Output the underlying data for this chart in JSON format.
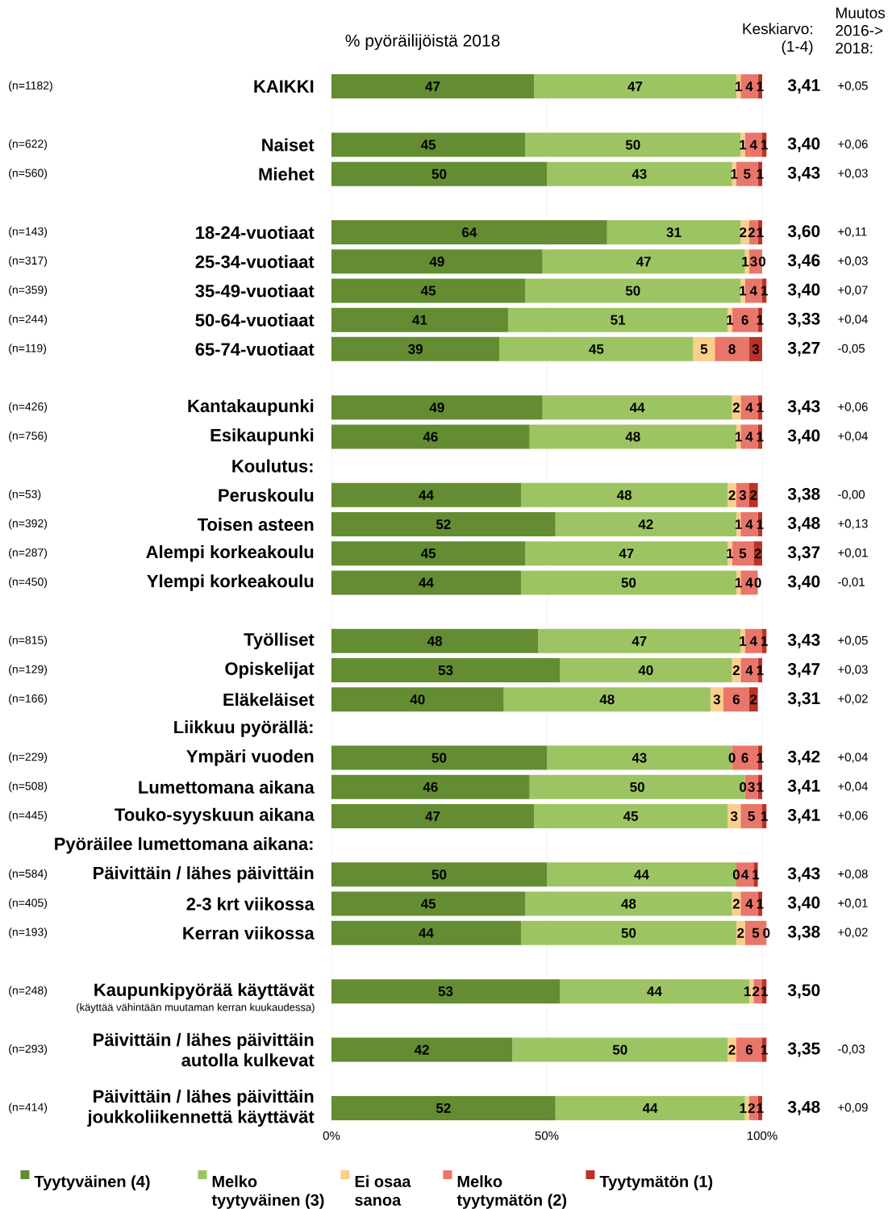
{
  "chart_data": {
    "type": "bar",
    "orientation": "horizontal",
    "stacked": true,
    "title": "% pyöräilijöistä 2018",
    "categories": [
      "KAIKKI",
      null,
      "Naiset",
      "Miehet",
      null,
      "18-24-vuotiaat",
      "25-34-vuotiaat",
      "35-49-vuotiaat",
      "50-64-vuotiaat",
      "65-74-vuotiaat",
      null,
      "Kantakaupunki",
      "Esikaupunki",
      null,
      "Peruskoulu",
      "Toisen asteen",
      "Alempi korkeakoulu",
      "Ylempi korkeakoulu",
      null,
      "Työlliset",
      "Opiskelijat",
      "Eläkeläiset",
      null,
      "Ympäri vuoden",
      "Lumettomana aikana",
      "Touko-syyskuun aikana",
      null,
      "Päivittäin / lähes päivittäin",
      "2-3 krt viikossa",
      "Kerran viikossa",
      null,
      "Kaupunkipyörää käyttävät",
      null,
      "Päivittäin / lähes päivittäin autolla kulkevat",
      null,
      "Päivittäin / lähes päivittäin joukkoliikennettä käyttävät"
    ],
    "series": [
      {
        "name": "Tyytyväinen (4)",
        "color": "#648c32",
        "values": [
          47,
          null,
          45,
          50,
          null,
          64,
          49,
          45,
          41,
          39,
          null,
          49,
          46,
          null,
          44,
          52,
          45,
          44,
          null,
          48,
          53,
          40,
          null,
          50,
          46,
          47,
          null,
          50,
          45,
          44,
          null,
          53,
          null,
          42,
          null,
          52
        ]
      },
      {
        "name": "Melko tyytyväinen (3)",
        "color": "#9dc462",
        "values": [
          47,
          null,
          50,
          43,
          null,
          31,
          47,
          50,
          51,
          45,
          null,
          44,
          48,
          null,
          48,
          42,
          47,
          50,
          null,
          47,
          40,
          48,
          null,
          43,
          50,
          45,
          null,
          44,
          48,
          50,
          null,
          44,
          null,
          50,
          null,
          44
        ]
      },
      {
        "name": "Ei osaa sanoa",
        "color": "#f9cf8c",
        "values": [
          1,
          null,
          1,
          1,
          null,
          2,
          1,
          1,
          1,
          5,
          null,
          2,
          1,
          null,
          2,
          1,
          1,
          1,
          null,
          1,
          2,
          3,
          null,
          0,
          0,
          3,
          null,
          0,
          2,
          2,
          null,
          1,
          null,
          2,
          null,
          1
        ]
      },
      {
        "name": "Melko tyytymätön (2)",
        "color": "#e8766a",
        "values": [
          4,
          null,
          4,
          5,
          null,
          2,
          3,
          4,
          6,
          8,
          null,
          4,
          4,
          null,
          3,
          4,
          5,
          4,
          null,
          4,
          4,
          6,
          null,
          6,
          3,
          5,
          null,
          4,
          4,
          5,
          null,
          2,
          null,
          6,
          null,
          2
        ]
      },
      {
        "name": "Tyytymätön (1)",
        "color": "#bb3228",
        "values": [
          1,
          null,
          1,
          1,
          null,
          1,
          0,
          1,
          1,
          3,
          null,
          1,
          1,
          null,
          2,
          1,
          2,
          0,
          null,
          1,
          1,
          2,
          null,
          1,
          1,
          1,
          null,
          1,
          1,
          0,
          null,
          1,
          null,
          1,
          null,
          1
        ]
      }
    ],
    "xlim": [
      0,
      101
    ],
    "xticks": [
      {
        "value": 0,
        "label": "0%"
      },
      {
        "value": 50,
        "label": "50%"
      },
      {
        "value": 100,
        "label": "100%"
      }
    ],
    "grid": "x",
    "legend": "bottom",
    "data_labels": true,
    "annotations": [
      "Keskiarvo: (1-4)",
      "Muutos 2016-> 2018:",
      "(n=1182)",
      "3,41",
      "+0,05",
      null,
      "(n=622)",
      "3,40",
      "+0,06",
      "(n=560)",
      "3,43",
      "+0,03",
      null,
      "(n=143)",
      "3,60",
      "+0,11",
      "(n=317)",
      "3,46",
      "+0,03",
      "(n=359)",
      "3,40",
      "+0,07",
      "(n=244)",
      "3,33",
      "+0,04",
      "(n=119)",
      "3,27",
      "-0,05",
      null,
      "(n=426)",
      "3,43",
      "+0,06",
      "(n=756)",
      "3,40",
      "+0,04",
      "Koulutus:",
      "(n=53)",
      "3,38",
      "-0,00",
      "(n=392)",
      "3,48",
      "+0,13",
      "(n=287)",
      "3,37",
      "+0,01",
      "(n=450)",
      "3,40",
      "-0,01",
      null,
      "(n=815)",
      "3,43",
      "+0,05",
      "(n=129)",
      "3,47",
      "+0,03",
      "(n=166)",
      "3,31",
      "+0,02",
      "Liikkuu pyörällä:",
      "(n=229)",
      "3,42",
      "+0,04",
      "(n=508)",
      "3,41",
      "+0,04",
      "(n=445)",
      "3,41",
      "+0,06",
      "Pyöräilee lumettomana aikana:",
      "(n=584)",
      "3,43",
      "+0,08",
      "(n=405)",
      "3,40",
      "+0,01",
      "(n=193)",
      "3,38",
      "+0,02",
      null,
      "(n=248)",
      "3,50",
      null,
      "(käyttää vähintään muutaman kerran kuukaudessa)",
      null,
      "(n=293)",
      "3,35",
      "-0,03",
      null,
      "(n=414)",
      "3,48",
      "+0,09"
    ]
  }
}
